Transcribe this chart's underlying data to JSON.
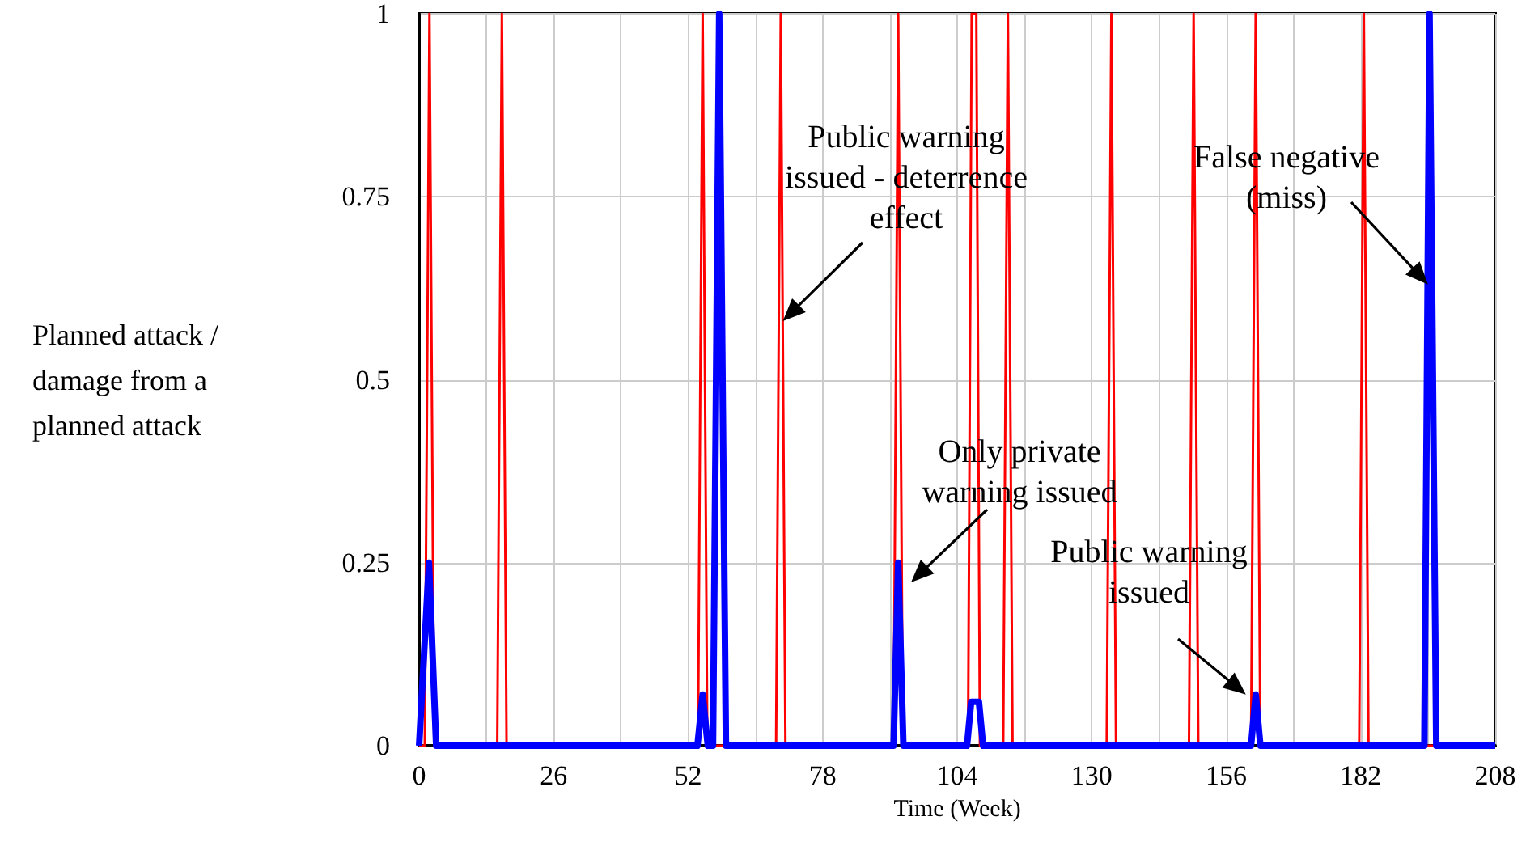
{
  "chart_data": {
    "type": "line",
    "xlabel": "Time (Week)",
    "ylabel": "Planned attack /\ndamage from a\nplanned attack",
    "xlim": [
      0,
      208
    ],
    "xticks": [
      0,
      {
        "value": 13,
        "label": null
      },
      26,
      {
        "value": 39,
        "label": null
      },
      52,
      {
        "value": 65,
        "label": null
      },
      78,
      {
        "value": 91,
        "label": null
      },
      104,
      {
        "value": 117,
        "label": null
      },
      130,
      {
        "value": 143,
        "label": null
      },
      156,
      {
        "value": 169,
        "label": null
      },
      182,
      {
        "value": 195,
        "label": null
      },
      208
    ],
    "ylim": [
      0,
      1
    ],
    "yticks": [
      0,
      0.25,
      0.5,
      0.75,
      1
    ],
    "grid": true,
    "marker": "none",
    "line_style": "solid",
    "series": [
      {
        "color": "#ff0000",
        "x": [
          0,
          1.1,
          2,
          2.9,
          15.1,
          16,
          16.9,
          53.9,
          54.8,
          55.7,
          69,
          69.9,
          70.8,
          91.7,
          92.6,
          93.5,
          106.1,
          106.8,
          107.7,
          108.4,
          112.9,
          113.8,
          114.7,
          132.9,
          133.8,
          134.7,
          148.8,
          149.7,
          150.6,
          160.8,
          161.7,
          162.6,
          181.7,
          182.6,
          183.5,
          208
        ],
        "values": [
          0,
          0,
          1,
          0,
          0,
          1,
          0,
          0,
          1,
          0,
          0,
          1,
          0,
          0,
          1,
          0,
          0,
          1,
          1,
          0,
          0,
          1,
          0,
          0,
          1,
          0,
          0,
          1,
          0,
          0,
          1,
          0,
          0,
          1,
          0,
          0
        ]
      },
      {
        "color": "#0000ff",
        "x": [
          0,
          1.9,
          3.3,
          53.8,
          54.8,
          55.8,
          56.8,
          58,
          59.3,
          91.7,
          92.6,
          93.6,
          105.9,
          106.7,
          108.2,
          109,
          160.8,
          161.7,
          162.6,
          194.3,
          195.3,
          196.6,
          208
        ],
        "values": [
          0,
          0.25,
          0,
          0,
          0.07,
          0,
          0,
          1,
          0,
          0,
          0.25,
          0,
          0,
          0.06,
          0.06,
          0,
          0,
          0.07,
          0,
          0,
          1,
          0,
          0
        ]
      }
    ],
    "annotations": [
      {
        "text": "Public warning\nissued - deterrence\neffect",
        "x": 70.3,
        "y": 0.58
      },
      "Only private\nwarning issued",
      {
        "text": "Public warning\nissued",
        "x": 159.8,
        "y": 0.07
      },
      {
        "text": "False negative\n(miss)",
        "x": 195,
        "y": 0.63
      }
    ]
  }
}
